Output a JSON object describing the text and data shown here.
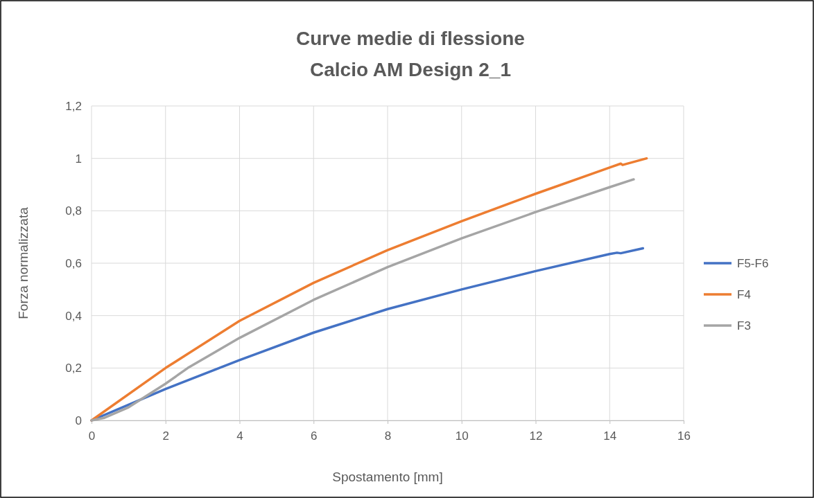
{
  "chart_data": {
    "type": "line",
    "title": "Curve medie di flessione",
    "subtitle": "Calcio AM Design 2_1",
    "xlabel": "Spostamento [mm]",
    "ylabel": "Forza normalizzata",
    "xlim": [
      0,
      16
    ],
    "xticks": [
      0,
      2,
      4,
      6,
      8,
      10,
      12,
      14,
      16
    ],
    "ylim": [
      0,
      1.2
    ],
    "yticks": [
      {
        "value": 0,
        "label": "0"
      },
      {
        "value": 0.2,
        "label": "0,2"
      },
      {
        "value": 0.4,
        "label": "0,4"
      },
      {
        "value": 0.6,
        "label": "0,6"
      },
      {
        "value": 0.8,
        "label": "0,8"
      },
      {
        "value": 1,
        "label": "1"
      },
      {
        "value": 1.2,
        "label": "1,2"
      }
    ],
    "grid": true,
    "legend": "right",
    "marker": "none",
    "line_style": "solid",
    "series": [
      {
        "name": "F5-F6",
        "color": "#4472c4",
        "x": [
          0,
          1,
          2,
          4,
          6,
          8,
          10,
          12,
          14,
          14.2,
          14.3,
          14.9
        ],
        "values": [
          0,
          0.06,
          0.12,
          0.23,
          0.335,
          0.425,
          0.5,
          0.57,
          0.635,
          0.64,
          0.638,
          0.657
        ]
      },
      {
        "name": "F4",
        "color": "#ed7d31",
        "x": [
          0,
          2,
          4,
          6,
          8,
          10,
          12,
          14,
          14.3,
          14.35,
          15
        ],
        "values": [
          0,
          0.2,
          0.38,
          0.525,
          0.65,
          0.76,
          0.865,
          0.965,
          0.98,
          0.975,
          1
        ]
      },
      {
        "name": "F3",
        "color": "#a5a5a5",
        "x": [
          0,
          0.35,
          1,
          2,
          2.5,
          2.6,
          4,
          6,
          8,
          10,
          12,
          14,
          14.65
        ],
        "values": [
          0,
          0.01,
          0.05,
          0.14,
          0.19,
          0.2,
          0.315,
          0.46,
          0.585,
          0.695,
          0.795,
          0.89,
          0.92
        ]
      }
    ]
  }
}
